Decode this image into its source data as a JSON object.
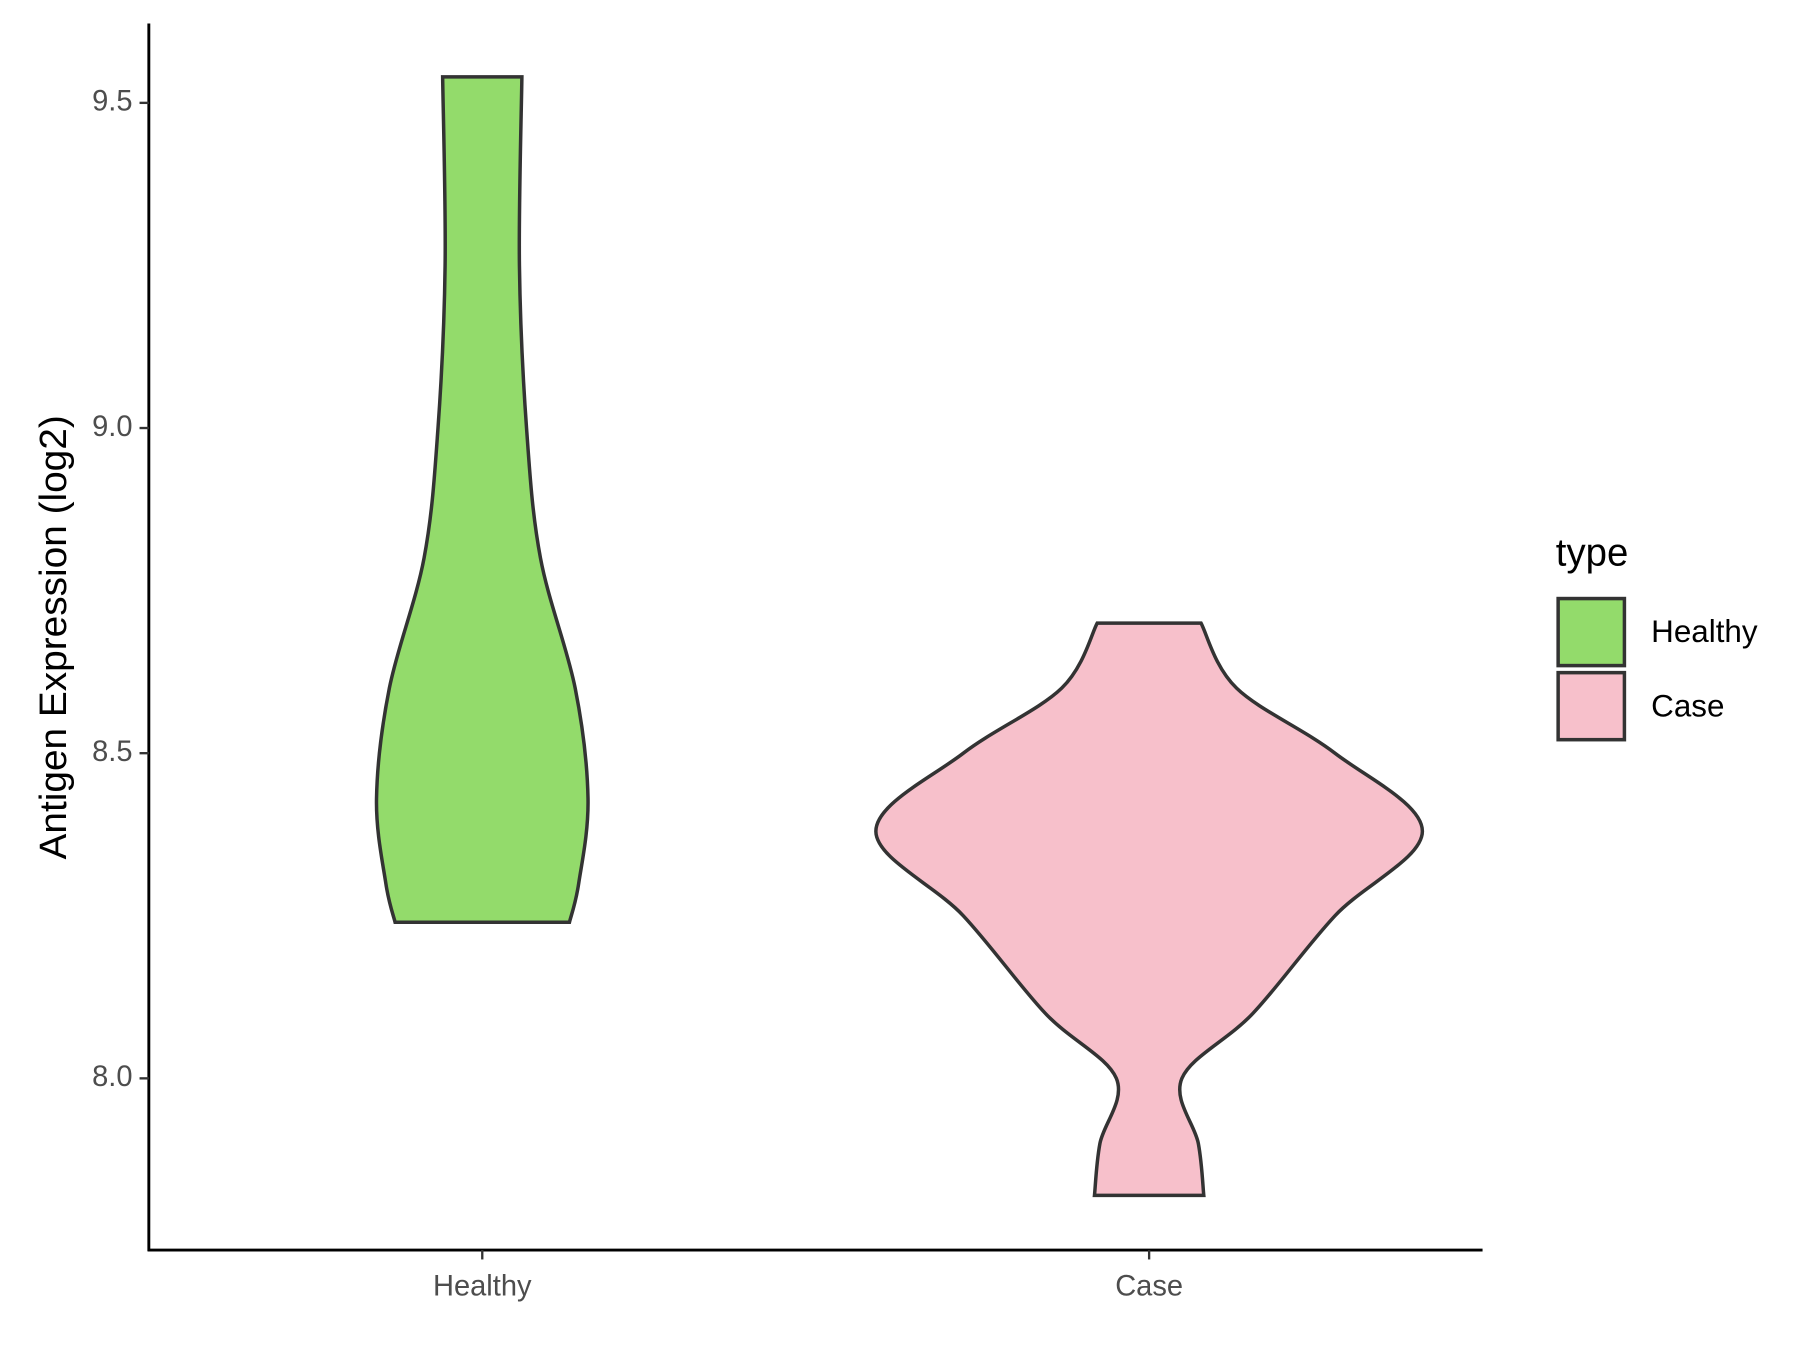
{
  "chart_data": {
    "type": "violin",
    "y_label": "Antigen Expression (log2)",
    "categories": [
      "Healthy",
      "Case"
    ],
    "ylim": [
      7.736,
      9.622
    ],
    "yticks": [
      {
        "value": 8,
        "label": "8.0"
      },
      {
        "value": 8.5,
        "label": "8.5"
      },
      {
        "value": 9,
        "label": "9.0"
      },
      9.5
    ],
    "legend_title": "type",
    "legend_position": "right",
    "violins": [
      {
        "name": "Healthy",
        "color": "#93db6b",
        "y": [
          9.54,
          9.25,
          9.0,
          8.8,
          8.6,
          8.43,
          8.3,
          8.24
        ],
        "width": [
          0.145,
          0.136,
          0.162,
          0.213,
          0.34,
          0.387,
          0.353,
          0.319
        ]
      },
      {
        "name": "Case",
        "color": "#f7c0cb",
        "y": [
          8.7,
          8.6,
          8.5,
          8.38,
          8.25,
          8.1,
          8.0,
          7.9,
          7.82
        ],
        "width": [
          0.19,
          0.32,
          0.68,
          1.0,
          0.68,
          0.38,
          0.12,
          0.18,
          0.2
        ]
      }
    ]
  }
}
